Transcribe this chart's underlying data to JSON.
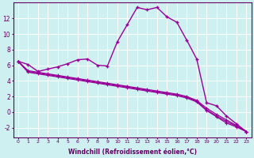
{
  "xlabel": "Windchill (Refroidissement éolien,°C)",
  "bg_color": "#cef0f0",
  "line_color": "#990099",
  "grid_color": "#ffffff",
  "x_ticks": [
    0,
    1,
    2,
    3,
    4,
    5,
    6,
    7,
    8,
    9,
    10,
    11,
    12,
    13,
    14,
    15,
    16,
    17,
    18,
    19,
    20,
    21,
    22,
    23
  ],
  "y_ticks": [
    -2,
    0,
    2,
    4,
    6,
    8,
    10,
    12
  ],
  "ylim": [
    -3.2,
    14.0
  ],
  "xlim": [
    -0.5,
    23.5
  ],
  "series1": [
    6.5,
    6.1,
    5.2,
    5.5,
    5.8,
    6.2,
    6.7,
    6.8,
    6.0,
    5.9,
    9.0,
    11.2,
    13.4,
    13.1,
    13.4,
    12.2,
    11.5,
    9.2,
    6.8,
    1.2,
    0.8,
    -0.5,
    -1.5,
    -2.5
  ],
  "series2": [
    6.5,
    5.3,
    5.1,
    4.9,
    4.7,
    4.5,
    4.3,
    4.1,
    3.9,
    3.7,
    3.5,
    3.3,
    3.1,
    2.9,
    2.7,
    2.5,
    2.3,
    2.0,
    1.5,
    0.5,
    -0.3,
    -1.0,
    -1.7,
    -2.5
  ],
  "series3": [
    6.5,
    5.2,
    5.0,
    4.8,
    4.6,
    4.4,
    4.2,
    4.0,
    3.8,
    3.6,
    3.4,
    3.2,
    3.0,
    2.8,
    2.6,
    2.4,
    2.2,
    1.9,
    1.4,
    0.3,
    -0.5,
    -1.2,
    -1.8,
    -2.5
  ],
  "series4": [
    6.5,
    5.1,
    4.9,
    4.7,
    4.5,
    4.3,
    4.1,
    3.9,
    3.7,
    3.5,
    3.3,
    3.1,
    2.9,
    2.7,
    2.5,
    2.3,
    2.1,
    1.8,
    1.3,
    0.2,
    -0.6,
    -1.4,
    -1.9,
    -2.5
  ]
}
